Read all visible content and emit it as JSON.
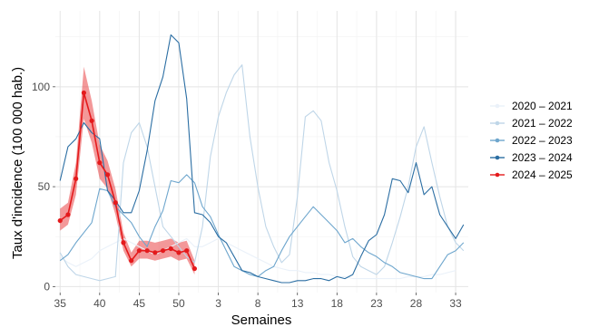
{
  "chart_data": {
    "type": "line",
    "xlabel": "Semaines",
    "ylabel": "Taux d'incidence (100 000 hab.)",
    "x_tick_labels": [
      "35",
      "40",
      "45",
      "50",
      "3",
      "8",
      "13",
      "18",
      "23",
      "28",
      "33"
    ],
    "y_ticks": [
      0,
      50,
      100
    ],
    "ylim": [
      -3,
      138
    ],
    "week_order": [
      35,
      36,
      37,
      38,
      39,
      40,
      41,
      42,
      43,
      44,
      45,
      46,
      47,
      48,
      49,
      50,
      51,
      52,
      1,
      2,
      3,
      4,
      5,
      6,
      7,
      8,
      9,
      10,
      11,
      12,
      13,
      14,
      15,
      16,
      17,
      18,
      19,
      20,
      21,
      22,
      23,
      24,
      25,
      26,
      27,
      28,
      29,
      30,
      31,
      32,
      33,
      34
    ],
    "grid": true,
    "legend_position": "right",
    "series": [
      {
        "name": "2020 – 2021",
        "color": "#eaf1f9",
        "points": [
          [
            35,
            15
          ],
          [
            36,
            12
          ],
          [
            37,
            10
          ],
          [
            38,
            12
          ],
          [
            39,
            14
          ],
          [
            40,
            18
          ],
          [
            41,
            20
          ],
          [
            42,
            22
          ],
          [
            43,
            24
          ],
          [
            44,
            22
          ],
          [
            45,
            20
          ],
          [
            46,
            18
          ],
          [
            47,
            16
          ],
          [
            48,
            18
          ],
          [
            49,
            20
          ],
          [
            50,
            22
          ],
          [
            51,
            24
          ],
          [
            52,
            20
          ],
          [
            1,
            20
          ],
          [
            2,
            22
          ],
          [
            3,
            24
          ],
          [
            4,
            22
          ],
          [
            5,
            20
          ],
          [
            6,
            18
          ],
          [
            7,
            16
          ],
          [
            8,
            14
          ],
          [
            9,
            12
          ],
          [
            10,
            10
          ],
          [
            11,
            9
          ],
          [
            12,
            8
          ],
          [
            13,
            8
          ],
          [
            14,
            7
          ],
          [
            15,
            7
          ],
          [
            16,
            6
          ],
          [
            17,
            6
          ],
          [
            18,
            5
          ],
          [
            19,
            5
          ],
          [
            20,
            4
          ],
          [
            21,
            4
          ],
          [
            22,
            4
          ],
          [
            23,
            4
          ],
          [
            24,
            4
          ],
          [
            25,
            4
          ],
          [
            26,
            4
          ],
          [
            27,
            5
          ],
          [
            28,
            5
          ],
          [
            29,
            5
          ],
          [
            30,
            6
          ],
          [
            31,
            6
          ],
          [
            32,
            7
          ],
          [
            33,
            8
          ]
        ]
      },
      {
        "name": "2021 – 2022",
        "color": "#bfd6e8",
        "points": [
          [
            35,
            17
          ],
          [
            36,
            10
          ],
          [
            37,
            6
          ],
          [
            38,
            5
          ],
          [
            39,
            4
          ],
          [
            40,
            3
          ],
          [
            41,
            4
          ],
          [
            42,
            5
          ],
          [
            43,
            62
          ],
          [
            44,
            77
          ],
          [
            45,
            82
          ],
          [
            46,
            70
          ],
          [
            47,
            50
          ],
          [
            48,
            30
          ],
          [
            49,
            25
          ],
          [
            50,
            20
          ],
          [
            51,
            15
          ],
          [
            52,
            12
          ],
          [
            1,
            30
          ],
          [
            2,
            65
          ],
          [
            3,
            85
          ],
          [
            4,
            97
          ],
          [
            5,
            106
          ],
          [
            6,
            111
          ],
          [
            7,
            75
          ],
          [
            8,
            50
          ],
          [
            9,
            30
          ],
          [
            10,
            20
          ],
          [
            11,
            12
          ],
          [
            12,
            16
          ],
          [
            13,
            45
          ],
          [
            14,
            85
          ],
          [
            15,
            88
          ],
          [
            16,
            83
          ],
          [
            17,
            62
          ],
          [
            18,
            48
          ],
          [
            19,
            30
          ],
          [
            20,
            15
          ],
          [
            21,
            10
          ],
          [
            22,
            8
          ],
          [
            23,
            6
          ],
          [
            24,
            10
          ],
          [
            25,
            22
          ],
          [
            26,
            35
          ],
          [
            27,
            50
          ],
          [
            28,
            70
          ],
          [
            29,
            80
          ],
          [
            30,
            62
          ],
          [
            31,
            45
          ],
          [
            32,
            30
          ],
          [
            33,
            22
          ],
          [
            34,
            18
          ]
        ]
      },
      {
        "name": "2022 – 2023",
        "color": "#6ea6cd",
        "points": [
          [
            35,
            13
          ],
          [
            36,
            16
          ],
          [
            37,
            22
          ],
          [
            38,
            27
          ],
          [
            39,
            32
          ],
          [
            40,
            49
          ],
          [
            41,
            48
          ],
          [
            42,
            40
          ],
          [
            43,
            36
          ],
          [
            44,
            32
          ],
          [
            45,
            25
          ],
          [
            46,
            20
          ],
          [
            47,
            30
          ],
          [
            48,
            38
          ],
          [
            49,
            53
          ],
          [
            50,
            52
          ],
          [
            51,
            56
          ],
          [
            52,
            52
          ],
          [
            1,
            40
          ],
          [
            2,
            35
          ],
          [
            3,
            26
          ],
          [
            4,
            18
          ],
          [
            5,
            10
          ],
          [
            6,
            8
          ],
          [
            7,
            6
          ],
          [
            8,
            5
          ],
          [
            9,
            8
          ],
          [
            10,
            10
          ],
          [
            11,
            18
          ],
          [
            12,
            25
          ],
          [
            13,
            30
          ],
          [
            14,
            35
          ],
          [
            15,
            40
          ],
          [
            16,
            36
          ],
          [
            17,
            32
          ],
          [
            18,
            28
          ],
          [
            19,
            22
          ],
          [
            20,
            24
          ],
          [
            21,
            20
          ],
          [
            22,
            17
          ],
          [
            23,
            15
          ],
          [
            24,
            12
          ],
          [
            25,
            10
          ],
          [
            26,
            7
          ],
          [
            27,
            6
          ],
          [
            28,
            5
          ],
          [
            29,
            4
          ],
          [
            30,
            4
          ],
          [
            31,
            10
          ],
          [
            32,
            16
          ],
          [
            33,
            18
          ],
          [
            34,
            22
          ]
        ]
      },
      {
        "name": "2023 – 2024",
        "color": "#2b6ea3",
        "points": [
          [
            35,
            53
          ],
          [
            36,
            70
          ],
          [
            37,
            74
          ],
          [
            38,
            82
          ],
          [
            39,
            77
          ],
          [
            40,
            74
          ],
          [
            41,
            48
          ],
          [
            42,
            43
          ],
          [
            43,
            37
          ],
          [
            44,
            37
          ],
          [
            45,
            48
          ],
          [
            46,
            68
          ],
          [
            47,
            93
          ],
          [
            48,
            105
          ],
          [
            49,
            126
          ],
          [
            50,
            122
          ],
          [
            51,
            94
          ],
          [
            52,
            37
          ],
          [
            1,
            36
          ],
          [
            2,
            32
          ],
          [
            3,
            25
          ],
          [
            4,
            22
          ],
          [
            5,
            15
          ],
          [
            6,
            8
          ],
          [
            7,
            7
          ],
          [
            8,
            5
          ],
          [
            9,
            4
          ],
          [
            10,
            3
          ],
          [
            11,
            2
          ],
          [
            12,
            2
          ],
          [
            13,
            3
          ],
          [
            14,
            3
          ],
          [
            15,
            4
          ],
          [
            16,
            4
          ],
          [
            17,
            3
          ],
          [
            18,
            5
          ],
          [
            19,
            4
          ],
          [
            20,
            6
          ],
          [
            21,
            15
          ],
          [
            22,
            23
          ],
          [
            23,
            26
          ],
          [
            24,
            36
          ],
          [
            25,
            54
          ],
          [
            26,
            53
          ],
          [
            27,
            47
          ],
          [
            28,
            62
          ],
          [
            29,
            46
          ],
          [
            30,
            50
          ],
          [
            31,
            36
          ],
          [
            32,
            30
          ],
          [
            33,
            24
          ],
          [
            34,
            31
          ]
        ]
      },
      {
        "name": "2024 – 2025",
        "color": "#e41a1c",
        "points": [
          [
            35,
            33
          ],
          [
            36,
            36
          ],
          [
            37,
            54
          ],
          [
            38,
            97
          ],
          [
            39,
            83
          ],
          [
            40,
            62
          ],
          [
            41,
            56
          ],
          [
            42,
            42
          ],
          [
            43,
            22
          ],
          [
            44,
            13
          ],
          [
            45,
            18
          ],
          [
            46,
            18
          ],
          [
            47,
            17
          ],
          [
            48,
            18
          ],
          [
            49,
            19
          ],
          [
            50,
            17
          ],
          [
            51,
            18
          ],
          [
            52,
            9
          ]
        ],
        "lower": [
          [
            35,
            28
          ],
          [
            36,
            31
          ],
          [
            37,
            46
          ],
          [
            38,
            84
          ],
          [
            39,
            72
          ],
          [
            40,
            54
          ],
          [
            41,
            49
          ],
          [
            42,
            36
          ],
          [
            43,
            18
          ],
          [
            44,
            10
          ],
          [
            45,
            14
          ],
          [
            46,
            14
          ],
          [
            47,
            13
          ],
          [
            48,
            14
          ],
          [
            49,
            15
          ],
          [
            50,
            13
          ],
          [
            51,
            14
          ],
          [
            52,
            6
          ]
        ],
        "upper": [
          [
            35,
            39
          ],
          [
            36,
            42
          ],
          [
            37,
            62
          ],
          [
            38,
            110
          ],
          [
            39,
            93
          ],
          [
            40,
            71
          ],
          [
            41,
            63
          ],
          [
            42,
            49
          ],
          [
            43,
            27
          ],
          [
            44,
            17
          ],
          [
            45,
            23
          ],
          [
            46,
            23
          ],
          [
            47,
            22
          ],
          [
            48,
            23
          ],
          [
            49,
            24
          ],
          [
            50,
            22
          ],
          [
            51,
            23
          ],
          [
            52,
            13
          ]
        ]
      }
    ]
  }
}
